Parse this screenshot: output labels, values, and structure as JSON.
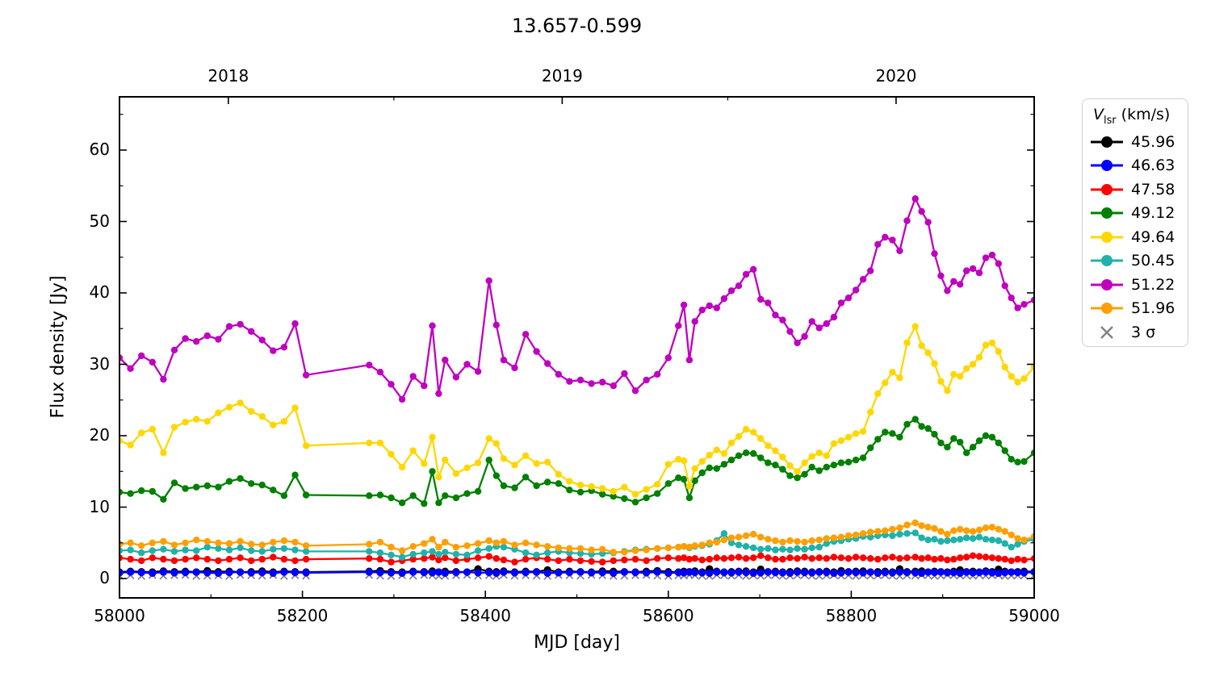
{
  "title": "13.657-0.599",
  "axes": {
    "xlabel": "MJD [day]",
    "ylabel": "Flux density [Jy]",
    "x_ticks": [
      58000,
      58200,
      58400,
      58600,
      58800,
      59000
    ],
    "x_tick_labels": [
      "58000",
      "58200",
      "58400",
      "58600",
      "58800",
      "59000"
    ],
    "x_minor_ticks": [
      58100,
      58300,
      58500,
      58700,
      58900
    ],
    "y_ticks": [
      0,
      10,
      20,
      30,
      40,
      50,
      60
    ],
    "y_tick_labels": [
      "0",
      "10",
      "20",
      "30",
      "40",
      "50",
      "60"
    ],
    "y_minor_ticks": [
      5,
      15,
      25,
      35,
      45,
      55,
      65
    ],
    "top_year_ticks": [
      {
        "label": "2018",
        "mjd": 58119
      },
      {
        "label": "2019",
        "mjd": 58484
      },
      {
        "label": "2020",
        "mjd": 58849
      }
    ],
    "top_minor_ticks": [
      58300,
      58665
    ],
    "x_range": [
      58000,
      59000
    ],
    "y_range": [
      -2.7,
      67.5
    ]
  },
  "legend": {
    "title": {
      "v": "V",
      "sub": "lsr",
      "rest": " (km/s)"
    },
    "entries": [
      {
        "label": "45.96",
        "color": "#000000",
        "marker": "dot"
      },
      {
        "label": "46.63",
        "color": "#0000ff",
        "marker": "dot"
      },
      {
        "label": "47.58",
        "color": "#ff0000",
        "marker": "dot"
      },
      {
        "label": "49.12",
        "color": "#008000",
        "marker": "dot"
      },
      {
        "label": "49.64",
        "color": "#ffd700",
        "marker": "dot"
      },
      {
        "label": "50.45",
        "color": "#20b2aa",
        "marker": "dot"
      },
      {
        "label": "51.22",
        "color": "#bf00bf",
        "marker": "dot"
      },
      {
        "label": "51.96",
        "color": "#ff9f00",
        "marker": "dot"
      },
      {
        "label": "3 σ",
        "color": "#808080",
        "marker": "x"
      }
    ]
  },
  "chart_data": {
    "type": "line",
    "title": "13.657-0.599",
    "xlabel": "MJD [day]",
    "ylabel": "Flux density [Jy]",
    "xlim": [
      58000,
      59000
    ],
    "ylim": [
      -2.7,
      67.5
    ],
    "grid": false,
    "legend_position": "outside-right",
    "legend_title": "Vlsr (km/s)",
    "x": [
      58000,
      58012,
      58024,
      58036,
      58048,
      58060,
      58072,
      58084,
      58096,
      58108,
      58120,
      58132,
      58144,
      58156,
      58168,
      58180,
      58192,
      58204,
      58273,
      58285,
      58297,
      58309,
      58321,
      58333,
      58342,
      58349,
      58356,
      58368,
      58380,
      58392,
      58404,
      58412,
      58420,
      58432,
      58444,
      58456,
      58468,
      58480,
      58492,
      58504,
      58516,
      58528,
      58540,
      58552,
      58564,
      58576,
      58588,
      58600,
      58611,
      58617,
      58623,
      58629,
      58637,
      58645,
      58653,
      58661,
      58669,
      58677,
      58685,
      58693,
      58701,
      58709,
      58717,
      58725,
      58733,
      58741,
      58749,
      58757,
      58765,
      58773,
      58781,
      58789,
      58797,
      58805,
      58813,
      58821,
      58829,
      58837,
      58845,
      58853,
      58861,
      58870,
      58877,
      58884,
      58891,
      58898,
      58905,
      58912,
      58919,
      58926,
      58933,
      58940,
      58947,
      58954,
      58961,
      58968,
      58975,
      58982,
      58989,
      59000
    ],
    "series": [
      {
        "name": "3 σ",
        "color": "#808080",
        "marker": "x",
        "line": false,
        "values": [
          0.4,
          0.45,
          0.35,
          0.5,
          0.4,
          0.45,
          0.5,
          0.35,
          0.4,
          0.45,
          0.35,
          0.5,
          0.45,
          0.4,
          0.5,
          0.35,
          0.45,
          0.4,
          0.5,
          0.4,
          0.35,
          0.45,
          0.4,
          0.5,
          0.45,
          0.35,
          0.4,
          0.45,
          0.5,
          0.4,
          0.45,
          0.35,
          0.5,
          0.4,
          0.45,
          0.4,
          0.35,
          0.5,
          0.45,
          0.4,
          0.5,
          0.45,
          0.35,
          0.4,
          0.45,
          0.5,
          0.4,
          0.35,
          0.45,
          0.4,
          0.5,
          0.45,
          0.4,
          0.35,
          0.5,
          0.45,
          0.4,
          0.5,
          0.35,
          0.45,
          0.4,
          0.45,
          0.5,
          0.35,
          0.4,
          0.45,
          0.5,
          0.4,
          0.35,
          0.45,
          0.5,
          0.4,
          0.45,
          0.35,
          0.5,
          0.4,
          0.45,
          0.5,
          0.4,
          0.35,
          0.45,
          0.4,
          0.5,
          0.45,
          0.35,
          0.4,
          0.5,
          0.45,
          0.4,
          0.45,
          0.35,
          0.5,
          0.4,
          0.45,
          0.5,
          0.35,
          0.4,
          0.45,
          0.4,
          0.45
        ]
      },
      {
        "name": "45.96",
        "color": "#000000",
        "marker": "dot",
        "line": true,
        "values": [
          0.9,
          1.0,
          0.95,
          0.9,
          1.05,
          0.95,
          1.0,
          0.9,
          1.1,
          0.95,
          1.0,
          0.9,
          0.95,
          1.05,
          0.9,
          1.0,
          0.95,
          0.9,
          1.0,
          1.1,
          0.95,
          0.9,
          1.0,
          0.95,
          1.05,
          0.9,
          1.0,
          0.95,
          0.9,
          1.35,
          1.0,
          0.95,
          1.05,
          0.9,
          1.0,
          0.95,
          1.2,
          0.9,
          1.0,
          0.95,
          0.9,
          1.05,
          1.0,
          0.95,
          0.9,
          1.0,
          1.1,
          0.95,
          0.9,
          1.0,
          0.95,
          1.05,
          0.9,
          1.35,
          1.0,
          0.9,
          0.95,
          1.0,
          1.05,
          0.9,
          1.3,
          0.95,
          1.0,
          0.9,
          0.95,
          1.05,
          1.0,
          0.9,
          0.95,
          1.0,
          0.9,
          1.1,
          0.95,
          1.0,
          1.05,
          0.9,
          0.95,
          1.0,
          0.9,
          1.35,
          0.95,
          1.0,
          1.05,
          0.9,
          1.0,
          0.95,
          0.9,
          1.0,
          1.2,
          0.95,
          1.0,
          0.9,
          1.05,
          0.95,
          1.3,
          1.0,
          0.9,
          0.95,
          1.0,
          0.95
        ]
      },
      {
        "name": "46.63",
        "color": "#0000ff",
        "marker": "dot",
        "line": true,
        "values": [
          0.8,
          0.9,
          0.85,
          0.75,
          0.9,
          0.8,
          0.85,
          0.9,
          0.8,
          0.75,
          0.85,
          0.9,
          0.8,
          0.85,
          0.75,
          0.9,
          0.85,
          0.8,
          0.9,
          0.85,
          0.8,
          0.75,
          0.9,
          0.85,
          0.8,
          0.9,
          0.75,
          0.85,
          0.9,
          0.8,
          0.85,
          0.75,
          0.9,
          0.8,
          0.85,
          0.9,
          0.75,
          0.8,
          0.85,
          0.9,
          0.8,
          0.85,
          0.75,
          0.9,
          0.85,
          0.8,
          0.9,
          0.75,
          0.85,
          0.8,
          0.9,
          0.85,
          0.8,
          0.75,
          0.9,
          0.85,
          0.8,
          0.9,
          0.85,
          0.75,
          0.8,
          0.9,
          0.85,
          0.8,
          0.75,
          0.9,
          0.85,
          0.8,
          0.9,
          0.85,
          0.75,
          0.8,
          0.9,
          0.85,
          0.8,
          0.9,
          0.75,
          0.85,
          0.8,
          0.9,
          0.85,
          0.8,
          0.75,
          0.9,
          0.85,
          0.9,
          0.8,
          0.85,
          0.75,
          0.9,
          0.8,
          0.85,
          0.9,
          0.8,
          0.75,
          0.85,
          0.9,
          0.85,
          0.8,
          0.9
        ]
      },
      {
        "name": "47.58",
        "color": "#ff0000",
        "marker": "dot",
        "line": true,
        "values": [
          2.9,
          2.7,
          2.5,
          2.9,
          2.7,
          2.5,
          2.7,
          2.9,
          2.7,
          2.5,
          2.7,
          2.9,
          2.5,
          2.7,
          3.0,
          2.7,
          2.5,
          2.7,
          2.8,
          2.7,
          2.3,
          2.5,
          2.7,
          2.8,
          3.0,
          2.6,
          2.9,
          2.5,
          2.7,
          2.9,
          3.1,
          2.8,
          2.6,
          2.3,
          2.7,
          2.9,
          2.7,
          2.5,
          2.7,
          2.5,
          2.4,
          2.3,
          2.5,
          2.6,
          2.7,
          2.5,
          2.8,
          2.9,
          2.8,
          2.9,
          2.7,
          2.8,
          2.6,
          2.7,
          2.9,
          2.8,
          2.9,
          3.0,
          2.8,
          2.9,
          3.2,
          2.9,
          2.7,
          2.7,
          2.9,
          2.8,
          3.0,
          2.8,
          2.9,
          2.8,
          3.0,
          2.9,
          2.8,
          3.0,
          2.9,
          2.8,
          2.7,
          2.9,
          3.0,
          2.8,
          2.9,
          3.0,
          2.8,
          2.9,
          2.7,
          2.8,
          2.6,
          2.7,
          2.9,
          3.0,
          3.2,
          3.1,
          3.0,
          2.9,
          2.8,
          2.7,
          2.5,
          2.7,
          2.6,
          2.8
        ]
      },
      {
        "name": "49.12",
        "color": "#008000",
        "marker": "dot",
        "line": true,
        "values": [
          12.1,
          11.9,
          12.3,
          12.2,
          11.1,
          13.4,
          12.6,
          12.8,
          13.0,
          12.8,
          13.6,
          14.0,
          13.3,
          13.1,
          12.4,
          11.6,
          14.5,
          11.7,
          11.6,
          11.7,
          11.3,
          10.6,
          11.6,
          10.5,
          15.0,
          10.6,
          11.6,
          11.3,
          11.9,
          12.2,
          16.6,
          14.4,
          13.0,
          12.7,
          14.2,
          13.0,
          13.5,
          13.3,
          12.4,
          12.1,
          12.3,
          11.8,
          11.5,
          11.2,
          10.7,
          11.3,
          11.9,
          13.3,
          14.1,
          13.9,
          11.3,
          13.7,
          14.8,
          15.5,
          15.4,
          16.0,
          16.6,
          17.2,
          17.6,
          17.5,
          16.9,
          16.2,
          15.9,
          15.3,
          14.4,
          14.1,
          14.6,
          15.6,
          15.1,
          15.6,
          15.9,
          16.2,
          16.3,
          16.6,
          16.9,
          18.3,
          19.5,
          20.5,
          20.3,
          19.8,
          21.6,
          22.3,
          21.3,
          21.0,
          20.2,
          19.0,
          18.4,
          19.6,
          19.1,
          17.6,
          18.4,
          19.3,
          20.0,
          19.8,
          19.0,
          17.9,
          16.7,
          16.3,
          16.4,
          17.6
        ]
      },
      {
        "name": "49.64",
        "color": "#ffd700",
        "marker": "dot",
        "line": true,
        "values": [
          19.3,
          18.7,
          20.4,
          20.9,
          17.6,
          21.2,
          21.9,
          22.3,
          22.0,
          23.2,
          24.0,
          24.6,
          23.4,
          22.7,
          21.5,
          22.0,
          23.9,
          18.6,
          19.0,
          19.0,
          17.4,
          15.6,
          17.9,
          16.1,
          19.8,
          14.2,
          16.6,
          14.7,
          15.5,
          16.2,
          19.6,
          18.9,
          16.8,
          15.9,
          17.2,
          16.1,
          16.3,
          14.6,
          13.6,
          13.1,
          12.9,
          12.6,
          12.2,
          12.8,
          11.8,
          12.5,
          13.2,
          16.0,
          16.7,
          16.5,
          12.9,
          15.4,
          16.4,
          17.3,
          18.0,
          17.5,
          19.0,
          19.9,
          20.9,
          20.5,
          19.6,
          18.6,
          17.9,
          17.0,
          15.8,
          15.0,
          16.2,
          17.1,
          17.6,
          17.2,
          18.9,
          19.3,
          19.8,
          20.3,
          20.6,
          23.3,
          25.9,
          27.4,
          28.9,
          28.1,
          33.0,
          35.3,
          32.6,
          31.6,
          30.1,
          27.6,
          26.3,
          28.6,
          28.3,
          29.4,
          30.0,
          31.0,
          32.7,
          33.0,
          31.8,
          29.6,
          28.3,
          27.5,
          28.0,
          29.6
        ]
      },
      {
        "name": "50.45",
        "color": "#20b2aa",
        "marker": "dot",
        "line": true,
        "values": [
          3.9,
          4.0,
          3.6,
          3.9,
          4.1,
          3.8,
          4.0,
          3.9,
          4.4,
          4.2,
          4.0,
          4.3,
          3.9,
          3.8,
          4.1,
          4.2,
          4.0,
          3.8,
          3.8,
          3.6,
          3.3,
          3.0,
          3.4,
          3.6,
          3.8,
          3.4,
          3.7,
          3.4,
          3.3,
          3.9,
          4.2,
          4.5,
          4.4,
          4.1,
          3.6,
          3.3,
          3.6,
          3.8,
          3.6,
          3.5,
          3.4,
          3.5,
          3.6,
          3.8,
          4.0,
          4.1,
          4.2,
          4.3,
          4.4,
          4.5,
          4.3,
          4.5,
          4.6,
          4.8,
          5.3,
          6.3,
          5.0,
          4.7,
          4.5,
          4.3,
          4.1,
          4.2,
          4.0,
          4.1,
          4.0,
          4.2,
          4.1,
          4.3,
          4.4,
          4.9,
          5.2,
          5.3,
          5.5,
          5.6,
          5.9,
          5.8,
          6.0,
          6.1,
          6.0,
          6.2,
          6.3,
          6.4,
          5.7,
          5.4,
          5.5,
          5.2,
          5.3,
          5.4,
          5.5,
          5.7,
          5.6,
          5.8,
          5.5,
          5.4,
          5.3,
          4.9,
          4.4,
          4.8,
          5.2,
          5.5
        ]
      },
      {
        "name": "51.22",
        "color": "#bf00bf",
        "marker": "dot",
        "line": true,
        "values": [
          30.9,
          29.4,
          31.2,
          30.3,
          27.9,
          32.0,
          33.6,
          33.2,
          34.0,
          33.5,
          35.3,
          35.6,
          34.6,
          33.4,
          31.9,
          32.4,
          35.7,
          28.5,
          29.9,
          28.9,
          27.2,
          25.1,
          28.3,
          27.0,
          35.4,
          25.9,
          30.6,
          28.2,
          30.0,
          29.0,
          41.7,
          35.5,
          30.6,
          29.5,
          34.2,
          31.8,
          30.1,
          28.6,
          27.6,
          27.8,
          27.3,
          27.5,
          27.0,
          28.7,
          26.3,
          27.8,
          28.6,
          30.9,
          35.4,
          38.3,
          30.6,
          36.0,
          37.6,
          38.2,
          37.9,
          39.2,
          40.3,
          41.0,
          42.6,
          43.3,
          39.1,
          38.6,
          36.9,
          36.2,
          34.6,
          33.0,
          33.9,
          36.0,
          35.1,
          35.7,
          36.6,
          38.6,
          39.3,
          40.4,
          41.9,
          43.1,
          46.8,
          47.8,
          47.4,
          45.9,
          50.1,
          53.2,
          51.4,
          49.9,
          45.5,
          42.4,
          40.3,
          41.6,
          41.2,
          43.1,
          43.4,
          42.8,
          44.9,
          45.3,
          44.1,
          41.0,
          39.3,
          37.9,
          38.4,
          39.0
        ]
      },
      {
        "name": "51.96",
        "color": "#ff9f00",
        "marker": "dot",
        "line": true,
        "values": [
          4.8,
          5.0,
          4.6,
          5.0,
          5.2,
          4.7,
          5.0,
          5.4,
          5.2,
          5.0,
          4.9,
          5.2,
          4.8,
          4.7,
          5.1,
          5.3,
          5.1,
          4.6,
          4.8,
          5.1,
          4.4,
          3.9,
          4.5,
          4.9,
          5.5,
          4.4,
          5.1,
          4.4,
          4.6,
          4.9,
          5.3,
          5.0,
          5.2,
          4.7,
          5.0,
          4.7,
          4.5,
          4.3,
          4.2,
          4.2,
          4.0,
          4.1,
          3.7,
          3.7,
          3.9,
          4.0,
          4.2,
          4.3,
          4.4,
          4.5,
          4.4,
          4.6,
          4.7,
          5.0,
          5.1,
          5.4,
          5.7,
          5.8,
          6.0,
          6.2,
          5.8,
          5.5,
          5.3,
          5.1,
          5.3,
          5.2,
          5.1,
          5.3,
          5.4,
          5.6,
          5.7,
          5.8,
          6.0,
          6.1,
          6.3,
          6.5,
          6.6,
          6.7,
          6.9,
          7.1,
          7.5,
          7.8,
          7.4,
          7.2,
          7.0,
          6.6,
          6.2,
          6.7,
          6.9,
          6.7,
          6.6,
          6.8,
          7.1,
          7.2,
          6.9,
          6.6,
          6.1,
          5.6,
          5.4,
          5.9
        ]
      }
    ]
  }
}
